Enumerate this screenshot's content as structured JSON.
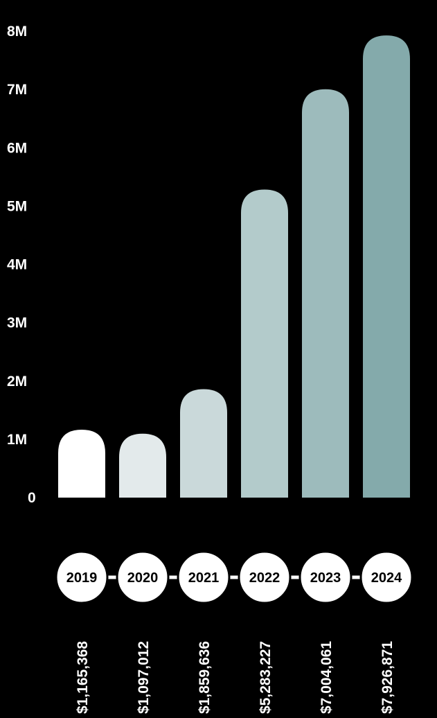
{
  "chart_data": {
    "type": "bar",
    "title": "",
    "xlabel": "",
    "ylabel": "",
    "categories": [
      "2019",
      "2020",
      "2021",
      "2022",
      "2023",
      "2024"
    ],
    "values": [
      1165368,
      1097012,
      1859636,
      5283227,
      7004061,
      7926871
    ],
    "value_labels": [
      "$1,165,368",
      "$1,097,012",
      "$1,859,636",
      "$5,283,227",
      "$7,004,061",
      "$7,926,871"
    ],
    "y_ticks": [
      {
        "value": 0,
        "label": "0"
      },
      {
        "value": 1000000,
        "label": "1M"
      },
      {
        "value": 2000000,
        "label": "2M"
      },
      {
        "value": 3000000,
        "label": "3M"
      },
      {
        "value": 4000000,
        "label": "4M"
      },
      {
        "value": 5000000,
        "label": "5M"
      },
      {
        "value": 6000000,
        "label": "6M"
      },
      {
        "value": 7000000,
        "label": "7M"
      },
      {
        "value": 8000000,
        "label": "8M"
      }
    ],
    "ylim": [
      0,
      8000000
    ],
    "grid": false,
    "legend": "none",
    "bar_colors": [
      "#ffffff",
      "#e3eaeb",
      "#cad9da",
      "#b3cbcb",
      "#9dbbbc",
      "#84aaab"
    ],
    "background": "#000000"
  }
}
